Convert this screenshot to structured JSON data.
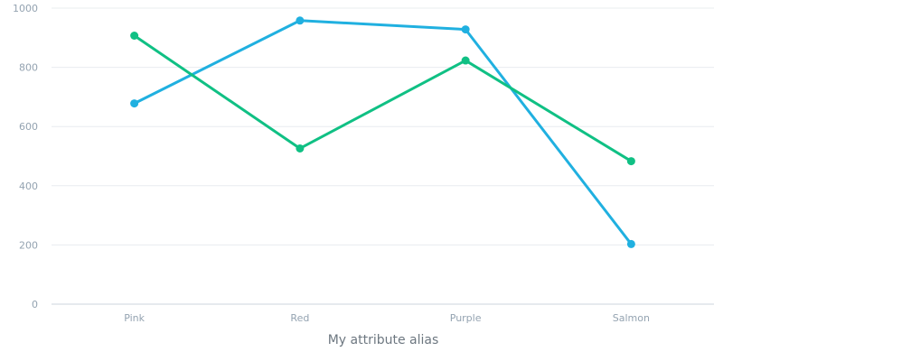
{
  "chart_data": {
    "type": "line",
    "title": "",
    "xlabel": "My attribute alias",
    "ylabel": "",
    "categories": [
      "Pink",
      "Red",
      "Purple",
      "Salmon"
    ],
    "ylim": [
      0,
      1000
    ],
    "yticks": [
      "0",
      "200",
      "400",
      "600",
      "800",
      "1000"
    ],
    "grid": true,
    "legend": "none",
    "series": [
      {
        "color": "#20b0e0",
        "values": [
          678,
          958,
          928,
          203
        ]
      },
      {
        "color": "#10c084",
        "values": [
          907,
          526,
          823,
          483
        ]
      }
    ]
  }
}
